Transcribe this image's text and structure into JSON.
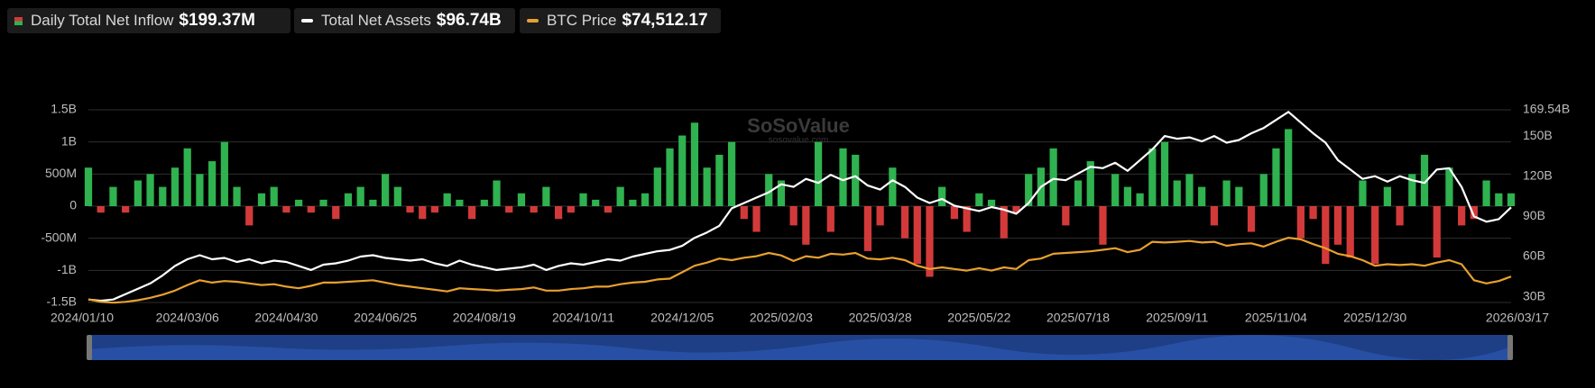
{
  "chart_data": {
    "type": "bar-line",
    "categories": [
      "2024/01/10",
      null,
      null,
      null,
      null,
      null,
      null,
      null,
      "2024/03/06",
      null,
      null,
      null,
      null,
      null,
      null,
      null,
      "2024/04/30",
      null,
      null,
      null,
      null,
      null,
      null,
      null,
      "2024/06/25",
      null,
      null,
      null,
      null,
      null,
      null,
      null,
      "2024/08/19",
      null,
      null,
      null,
      null,
      null,
      null,
      null,
      "2024/10/11",
      null,
      null,
      null,
      null,
      null,
      null,
      null,
      "2024/12/05",
      null,
      null,
      null,
      null,
      null,
      null,
      null,
      "2025/02/03",
      null,
      null,
      null,
      null,
      null,
      null,
      null,
      "2025/03/28",
      null,
      null,
      null,
      null,
      null,
      null,
      null,
      "2025/05/22",
      null,
      null,
      null,
      null,
      null,
      null,
      null,
      "2025/07/18",
      null,
      null,
      null,
      null,
      null,
      null,
      null,
      "2025/09/11",
      null,
      null,
      null,
      null,
      null,
      null,
      null,
      "2025/11/04",
      null,
      null,
      null,
      null,
      null,
      null,
      null,
      "2025/12/30",
      null,
      null,
      null,
      null,
      null,
      null,
      null,
      null,
      null,
      null,
      "2026/03/17"
    ],
    "series": [
      {
        "name": "Daily Total Net Inflow",
        "latest": "$199.37M",
        "colors": {
          "positive": "#2fb24f",
          "negative": "#d23a3a"
        },
        "values": [
          0.6,
          -0.1,
          0.3,
          -0.1,
          0.4,
          0.5,
          0.3,
          0.6,
          0.9,
          0.5,
          0.7,
          1.0,
          0.3,
          -0.3,
          0.2,
          0.3,
          -0.1,
          0.1,
          -0.1,
          0.1,
          -0.2,
          0.2,
          0.3,
          0.1,
          0.5,
          0.3,
          -0.1,
          -0.2,
          -0.1,
          0.2,
          0.1,
          -0.2,
          0.1,
          0.4,
          -0.1,
          0.2,
          -0.1,
          0.3,
          -0.2,
          -0.1,
          0.2,
          0.1,
          -0.1,
          0.3,
          0.1,
          0.2,
          0.6,
          0.9,
          1.1,
          1.3,
          0.6,
          0.8,
          1.0,
          -0.2,
          -0.4,
          0.5,
          0.4,
          -0.3,
          -0.6,
          1.0,
          -0.4,
          0.9,
          0.8,
          -0.7,
          -0.3,
          0.6,
          -0.5,
          -0.9,
          -1.1,
          0.3,
          -0.2,
          -0.4,
          0.2,
          0.1,
          -0.5,
          -0.1,
          0.5,
          0.6,
          0.9,
          -0.3,
          0.4,
          0.7,
          -0.6,
          0.5,
          0.3,
          0.2,
          0.9,
          1.0,
          0.4,
          0.5,
          0.3,
          -0.3,
          0.4,
          0.3,
          -0.4,
          0.5,
          0.9,
          1.2,
          -0.5,
          -0.2,
          -0.9,
          -0.6,
          -0.8,
          0.4,
          -0.9,
          0.3,
          -0.3,
          0.5,
          0.8,
          -0.8,
          0.6,
          -0.3,
          -0.2,
          0.4,
          0.2,
          0.19937
        ]
      },
      {
        "name": "Total Net Assets",
        "latest": "$96.74B",
        "color": "#ffffff",
        "axis": "y2",
        "values": [
          28,
          27,
          28,
          32,
          36,
          40,
          46,
          53,
          58,
          61,
          58,
          59,
          56,
          58,
          55,
          57,
          56,
          53,
          50,
          54,
          55,
          57,
          60,
          61,
          59,
          58,
          57,
          58,
          55,
          53,
          57,
          54,
          52,
          50,
          51,
          52,
          54,
          50,
          53,
          55,
          54,
          56,
          58,
          57,
          60,
          62,
          64,
          65,
          68,
          74,
          78,
          83,
          96,
          100,
          104,
          108,
          114,
          112,
          118,
          115,
          121,
          117,
          120,
          113,
          110,
          117,
          112,
          104,
          100,
          103,
          98,
          96,
          94,
          97,
          95,
          92,
          100,
          112,
          118,
          117,
          122,
          127,
          126,
          130,
          124,
          132,
          140,
          150,
          148,
          149,
          146,
          150,
          145,
          147,
          152,
          156,
          162,
          168,
          160,
          152,
          145,
          132,
          125,
          118,
          120,
          116,
          120,
          117,
          115,
          125,
          126,
          112,
          90,
          86,
          88,
          96.74
        ]
      },
      {
        "name": "BTC Price",
        "latest": "$74,512.17",
        "color": "#e8a02e",
        "axis": "y3",
        "values": [
          46000,
          43000,
          42000,
          43000,
          45000,
          48000,
          52000,
          57000,
          64000,
          70000,
          67000,
          69000,
          68000,
          66000,
          64000,
          65000,
          62000,
          60000,
          63000,
          67000,
          67000,
          68000,
          69000,
          70000,
          67000,
          64000,
          62000,
          60000,
          58000,
          56000,
          60000,
          59000,
          58000,
          57000,
          58000,
          59000,
          61000,
          57000,
          57000,
          59000,
          60000,
          62000,
          62000,
          65000,
          67000,
          68000,
          71000,
          72000,
          80000,
          88000,
          92000,
          97000,
          95000,
          98000,
          100000,
          104000,
          101000,
          94000,
          100000,
          98000,
          103000,
          102000,
          104000,
          97000,
          96000,
          98000,
          95000,
          88000,
          84000,
          86000,
          84000,
          82000,
          85000,
          82000,
          86000,
          84000,
          95000,
          97000,
          103000,
          104000,
          105000,
          106000,
          108000,
          110000,
          105000,
          108000,
          118000,
          117000,
          118000,
          119000,
          117000,
          118000,
          113000,
          115000,
          116000,
          112000,
          118000,
          123000,
          121000,
          115000,
          110000,
          103000,
          100000,
          95000,
          88000,
          90000,
          89000,
          90000,
          88000,
          92000,
          95000,
          90000,
          70000,
          66000,
          69000,
          74512.17
        ]
      }
    ],
    "ylim": [
      -1.5,
      1.5
    ],
    "yticks": [
      {
        "value": -1.5,
        "label": "-1.5B"
      },
      {
        "value": -1,
        "label": "-1B"
      },
      {
        "value": -0.5,
        "label": "-500M"
      },
      0,
      {
        "value": 0.5,
        "label": "500M"
      },
      {
        "value": 1,
        "label": "1B"
      },
      {
        "value": 1.5,
        "label": "1.5B"
      }
    ],
    "y2lim": [
      25.75,
      169.54
    ],
    "y2ticks": [
      {
        "value": 30,
        "label": "30B"
      },
      {
        "value": 60,
        "label": "60B"
      },
      {
        "value": 90,
        "label": "90B"
      },
      {
        "value": 120,
        "label": "120B"
      },
      {
        "value": 150,
        "label": "150B"
      },
      {
        "value": 169.54,
        "label": "169.54B"
      }
    ],
    "y3lim": [
      42200,
      282700
    ],
    "grid": true,
    "watermark": {
      "brand": "SoSoValue",
      "site": "sosovalue.com"
    }
  }
}
